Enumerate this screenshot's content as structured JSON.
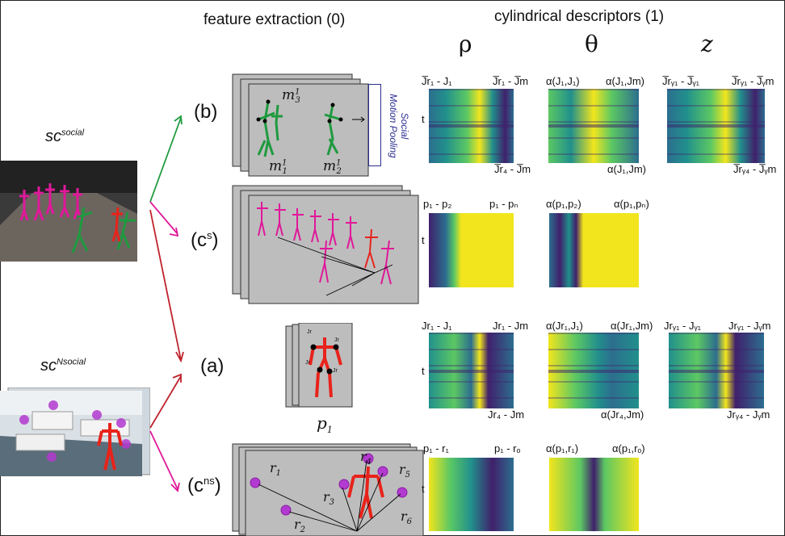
{
  "headers": {
    "feature_extraction": "feature extraction (0)",
    "cylindrical_descriptors": "cylindrical descriptors (1)",
    "rho": "ρ",
    "theta": "θ",
    "z": "z"
  },
  "branches": {
    "b": "(b)",
    "cs_base": "(c",
    "cs_sup": "s",
    "cs_close": ")",
    "a": "(a)",
    "cns_base": "(c",
    "cns_sup": "ns",
    "cns_close": ")"
  },
  "inputs": {
    "social_base": "sc",
    "social_sup": "social",
    "nsocial_base": "sc",
    "nsocial_sup": "Nsocial"
  },
  "panel_b": {
    "m3": "m",
    "m3_sup": "1",
    "m3_sub": "3",
    "m1": "m",
    "m1_sup": "1",
    "m1_sub": "1",
    "m2": "m",
    "m2_sup": "1",
    "m2_sub": "2",
    "pooling_line1": "Social",
    "pooling_line2": "Motion Pooling"
  },
  "panel_a": {
    "p1": "p",
    "p1_sub": "1",
    "j1": "Jr",
    "j2": "Jr",
    "j3": "Jr",
    "j4": "Jr"
  },
  "panel_cns": {
    "r1": "r",
    "r1_sub": "1",
    "r2": "r",
    "r2_sub": "2",
    "r3": "r",
    "r3_sub": "3",
    "r4": "r",
    "r4_sub": "4",
    "r5": "r",
    "r5_sub": "5",
    "r6": "r",
    "r6_sub": "6"
  },
  "heatmap_labels": {
    "row_b": {
      "rho_tl": "J̅r₁ - J₁",
      "rho_tr": "J̅r₁ - J̅m",
      "rho_br": "J̅r₄ - J̅m",
      "theta_tl": "α(J₁,J₁)",
      "theta_tr": "α(J₁,Jm)",
      "theta_br": "α(J₁,Jm)",
      "z_tl": "J̅rᵧ₁ - J̅ᵧ₁",
      "z_tr": "J̅rᵧ₁ - J̅ᵧm",
      "z_br": "J̅rᵧ₄ - J̅ᵧm",
      "t": "t"
    },
    "row_cs": {
      "rho_tl": "p₁ - p₂",
      "rho_tr": "p₁ - pₙ",
      "theta_tl": "α(p₁,p₂)",
      "theta_tr": "α(p₁,pₙ)",
      "t": "t"
    },
    "row_a": {
      "rho_tl": "Jr₁ - J₁",
      "rho_tr": "Jr₁ - Jm",
      "rho_br": "Jr₄ - Jm",
      "theta_tl": "α(Jr₁,J₁)",
      "theta_tr": "α(Jr₁,Jm)",
      "theta_br": "α(Jr₄,Jm)",
      "z_tl": "Jrᵧ₁ - Jᵧ₁",
      "z_tr": "Jrᵧ₁ - Jᵧm",
      "z_br": "Jrᵧ₄ - Jᵧm",
      "t": "t"
    },
    "row_cns": {
      "rho_tl": "p₁ - r₁",
      "rho_tr": "p₁ - rₒ",
      "theta_tl": "α(p₁,r₁)",
      "theta_tr": "α(p₁,rₒ)",
      "t": "t"
    }
  },
  "colors": {
    "green": "#1f9a3f",
    "magenta": "#e0189a",
    "red": "#e8231b",
    "blue_box": "#2b2e8f",
    "viridis_dark": "#40206b",
    "viridis_blue": "#2c6e8e",
    "viridis_teal": "#21908c",
    "viridis_green": "#5cc863",
    "viridis_yellow": "#f2e51d"
  }
}
